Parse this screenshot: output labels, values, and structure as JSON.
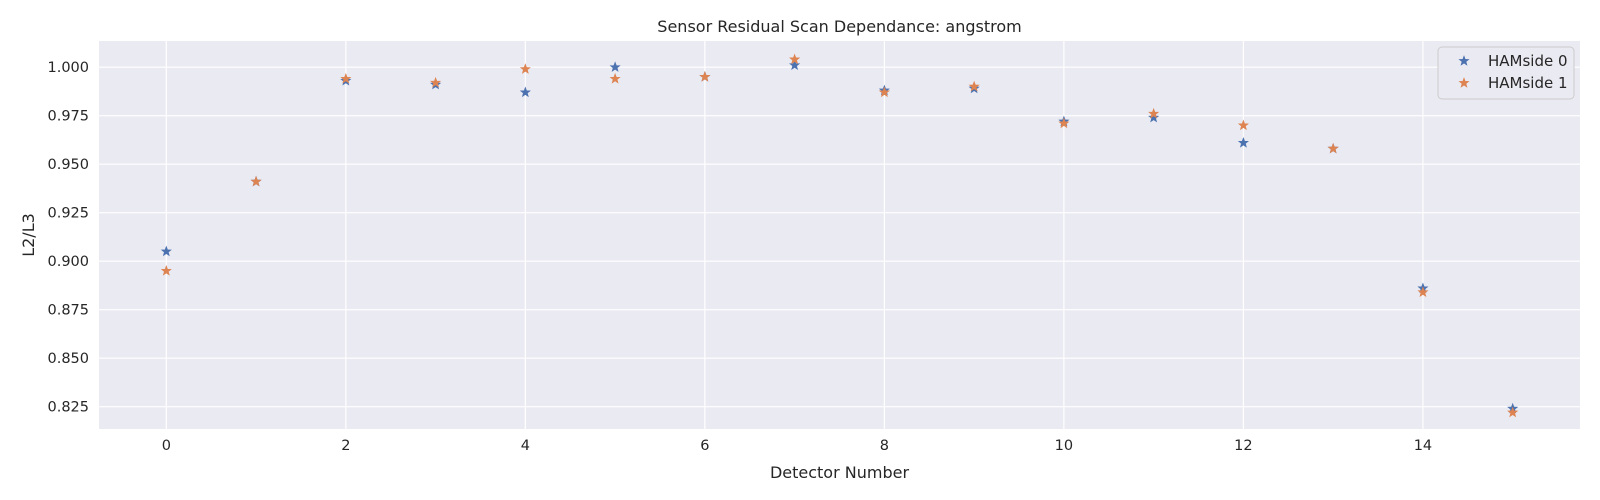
{
  "chart_data": {
    "type": "scatter",
    "title": "Sensor Residual Scan Dependance: angstrom",
    "xlabel": "Detector Number",
    "ylabel": "L2/L3",
    "xlim": [
      -0.75,
      15.75
    ],
    "ylim": [
      0.8135,
      1.0135
    ],
    "xticks": [
      0,
      2,
      4,
      6,
      8,
      10,
      12,
      14
    ],
    "yticks": [
      0.825,
      0.85,
      0.875,
      0.9,
      0.925,
      0.95,
      0.975,
      1.0
    ],
    "ytick_labels": [
      "0.825",
      "0.850",
      "0.875",
      "0.900",
      "0.925",
      "0.950",
      "0.975",
      "1.000"
    ],
    "grid": true,
    "marker": "star",
    "legend_position": "top-right",
    "series": [
      {
        "name": "HAMside 0",
        "color": "#4c72b0",
        "x": [
          0,
          1,
          2,
          3,
          4,
          5,
          6,
          7,
          8,
          9,
          10,
          11,
          12,
          13,
          14,
          15
        ],
        "y": [
          0.905,
          0.941,
          0.993,
          0.991,
          0.987,
          1.0,
          0.995,
          1.001,
          0.988,
          0.989,
          0.972,
          0.974,
          0.961,
          0.958,
          0.886,
          0.824
        ]
      },
      {
        "name": "HAMside 1",
        "color": "#dd8452",
        "x": [
          0,
          1,
          2,
          3,
          4,
          5,
          6,
          7,
          8,
          9,
          10,
          11,
          12,
          13,
          14,
          15
        ],
        "y": [
          0.895,
          0.941,
          0.994,
          0.992,
          0.999,
          0.994,
          0.995,
          1.004,
          0.987,
          0.99,
          0.971,
          0.976,
          0.97,
          0.958,
          0.884,
          0.822
        ]
      }
    ]
  }
}
